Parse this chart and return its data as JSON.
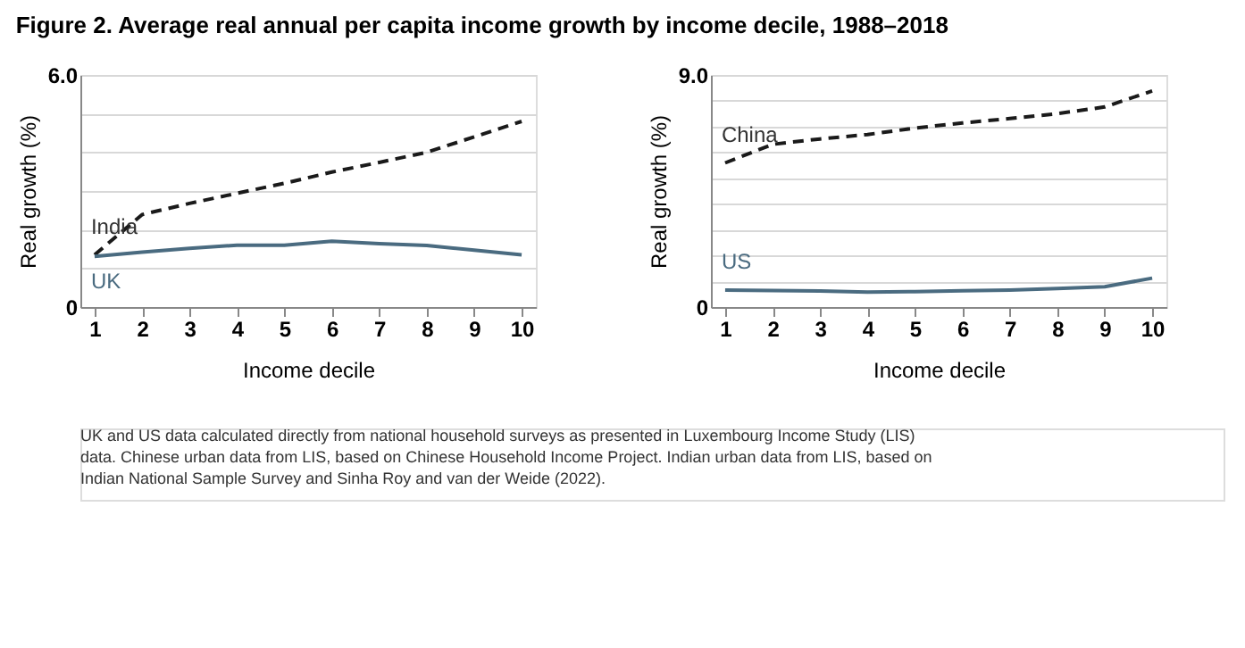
{
  "chart_data": [
    {
      "type": "line",
      "title": "Figure 2. Average real annual per capita income growth by income decile, 1988–2018",
      "xlabel": "Income decile",
      "ylabel": "Real growth (%)",
      "categories": [
        "1",
        "2",
        "3",
        "4",
        "5",
        "6",
        "7",
        "8",
        "9",
        "10"
      ],
      "ylim": [
        0,
        6
      ],
      "yticks": [
        0,
        {
          "value": 1,
          "label": null
        },
        {
          "value": 2,
          "label": null
        },
        {
          "value": 3,
          "label": null
        },
        {
          "value": 4,
          "label": null
        },
        {
          "value": 5,
          "label": null
        },
        {
          "value": 6,
          "label": "6.0"
        }
      ],
      "grid": "y",
      "legend": false,
      "series": [
        {
          "name": "India",
          "color": "#1a1a1a",
          "line_style": "dashed",
          "values": [
            1.35,
            2.39,
            2.68,
            2.94,
            3.2,
            3.49,
            3.74,
            4.0,
            4.4,
            4.8
          ]
        },
        {
          "name": "UK",
          "color": "#4a6b80",
          "line_style": "solid",
          "values": [
            1.31,
            1.42,
            1.52,
            1.6,
            1.6,
            1.7,
            1.64,
            1.59,
            1.47,
            1.35
          ]
        }
      ]
    },
    {
      "type": "line",
      "xlabel": "Income decile",
      "ylabel": "Real growth (%)",
      "categories": [
        "1",
        "2",
        "3",
        "4",
        "5",
        "6",
        "7",
        "8",
        "9",
        "10"
      ],
      "ylim": [
        0,
        9
      ],
      "yticks": [
        0,
        {
          "value": 1,
          "label": null
        },
        {
          "value": 2,
          "label": null
        },
        {
          "value": 3,
          "label": null
        },
        {
          "value": 4,
          "label": null
        },
        {
          "value": 5,
          "label": null
        },
        {
          "value": 6,
          "label": null
        },
        {
          "value": 7,
          "label": null
        },
        {
          "value": 8,
          "label": null
        },
        {
          "value": 9,
          "label": "9.0"
        }
      ],
      "grid": "y",
      "legend": false,
      "series": [
        {
          "name": "China",
          "color": "#1a1a1a",
          "line_style": "dashed",
          "values": [
            5.59,
            6.31,
            6.52,
            6.69,
            6.94,
            7.14,
            7.31,
            7.5,
            7.76,
            8.38
          ]
        },
        {
          "name": "US",
          "color": "#4a6b80",
          "line_style": "solid",
          "values": [
            0.66,
            0.64,
            0.62,
            0.58,
            0.6,
            0.63,
            0.66,
            0.72,
            0.79,
            1.12
          ]
        }
      ],
      "annotations": [
        "UK and US data calculated directly from national household surveys as presented in Luxembourg Income Study (LIS) data. Chinese urban data from LIS, based on Chinese Household Income Project. Indian urban data from LIS, based on Indian National Sample Survey and Sinha Roy and van der Weide (2022)."
      ]
    }
  ]
}
